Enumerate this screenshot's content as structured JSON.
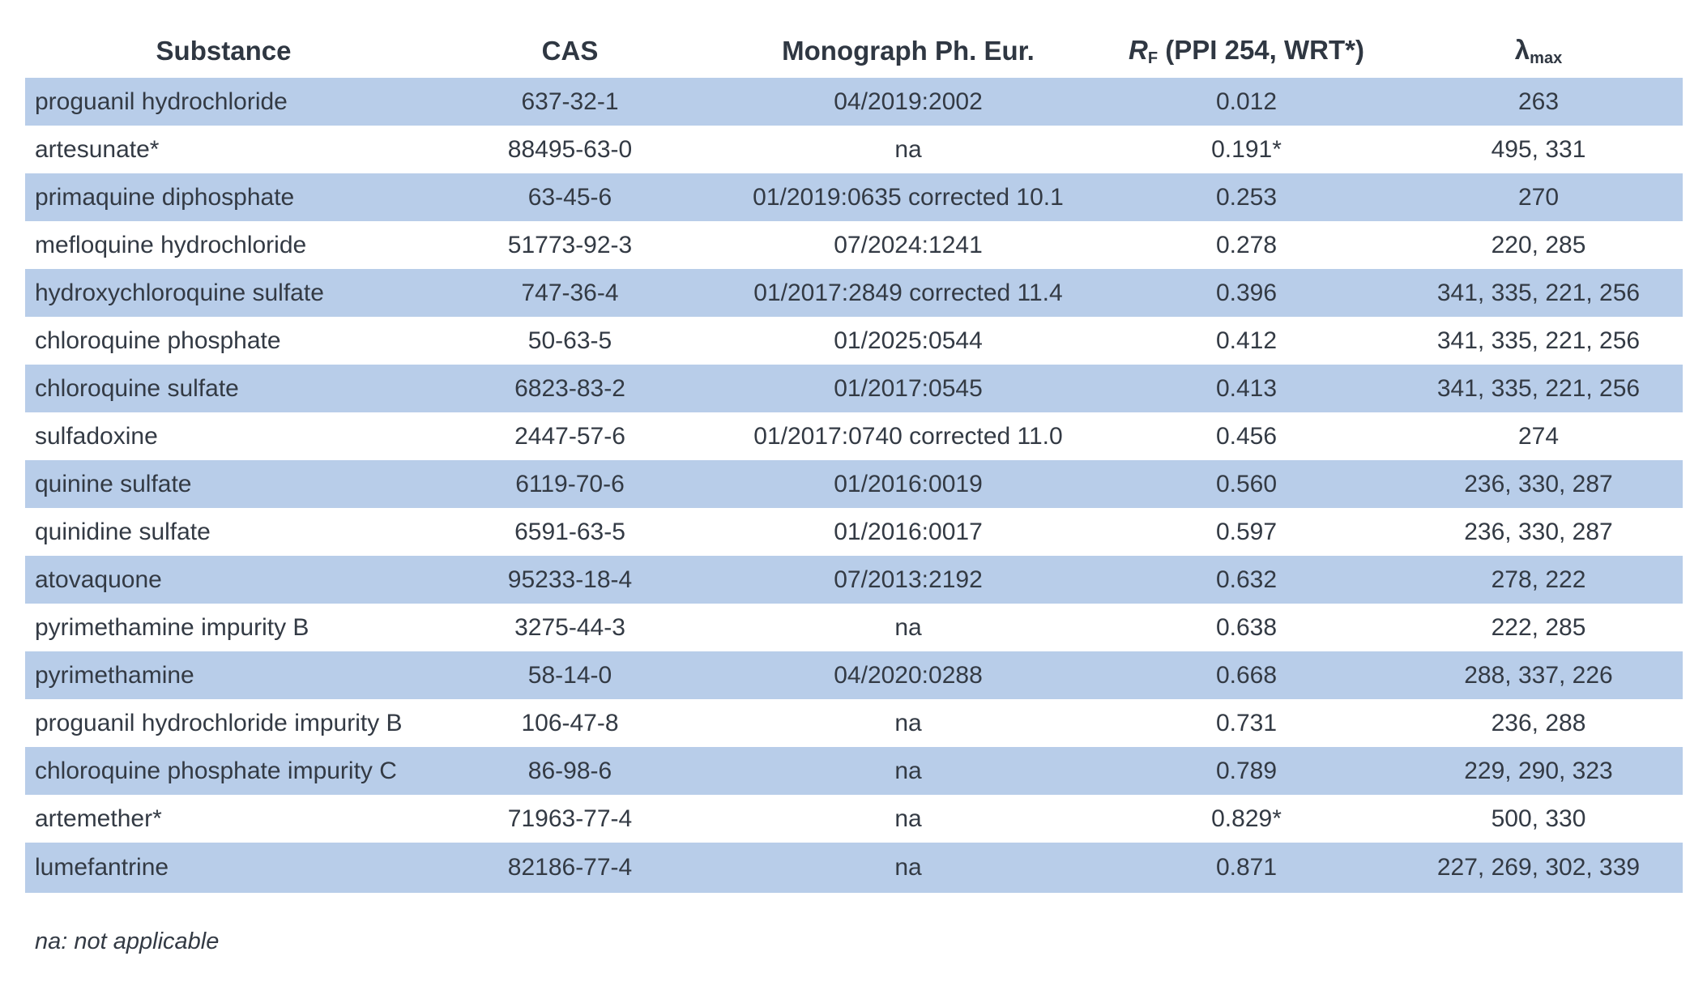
{
  "header": {
    "substance": "Substance",
    "cas": "CAS",
    "monograph": "Monograph Ph. Eur.",
    "rf_symbol": "R",
    "rf_sub": "F",
    "rf_rest": " (PPI 254, WRT*)",
    "lambda_symbol": "λ",
    "lambda_sub": "max"
  },
  "rows": [
    {
      "substance": "proguanil hydrochloride",
      "cas": "637-32-1",
      "monograph": "04/2019:2002",
      "rf": "0.012",
      "lambda": "263"
    },
    {
      "substance": "artesunate*",
      "cas": "88495-63-0",
      "monograph": "na",
      "rf": "0.191*",
      "lambda": "495, 331"
    },
    {
      "substance": "primaquine diphosphate",
      "cas": "63-45-6",
      "monograph": "01/2019:0635 corrected 10.1",
      "rf": "0.253",
      "lambda": "270"
    },
    {
      "substance": "mefloquine hydrochloride",
      "cas": "51773-92-3",
      "monograph": "07/2024:1241",
      "rf": "0.278",
      "lambda": "220, 285"
    },
    {
      "substance": "hydroxychloroquine sulfate",
      "cas": "747-36-4",
      "monograph": "01/2017:2849 corrected 11.4",
      "rf": "0.396",
      "lambda": "341, 335, 221, 256"
    },
    {
      "substance": "chloroquine phosphate",
      "cas": "50-63-5",
      "monograph": "01/2025:0544",
      "rf": "0.412",
      "lambda": "341, 335, 221, 256"
    },
    {
      "substance": "chloroquine sulfate",
      "cas": "6823-83-2",
      "monograph": "01/2017:0545",
      "rf": "0.413",
      "lambda": "341, 335, 221, 256"
    },
    {
      "substance": "sulfadoxine",
      "cas": "2447-57-6",
      "monograph": "01/2017:0740 corrected 11.0",
      "rf": "0.456",
      "lambda": "274"
    },
    {
      "substance": "quinine sulfate",
      "cas": "6119-70-6",
      "monograph": "01/2016:0019",
      "rf": "0.560",
      "lambda": "236, 330, 287"
    },
    {
      "substance": "quinidine sulfate",
      "cas": "6591-63-5",
      "monograph": "01/2016:0017",
      "rf": "0.597",
      "lambda": "236, 330, 287"
    },
    {
      "substance": "atovaquone",
      "cas": "95233-18-4",
      "monograph": "07/2013:2192",
      "rf": "0.632",
      "lambda": "278, 222"
    },
    {
      "substance": "pyrimethamine impurity B",
      "cas": "3275-44-3",
      "monograph": "na",
      "rf": "0.638",
      "lambda": "222, 285"
    },
    {
      "substance": "pyrimethamine",
      "cas": "58-14-0",
      "monograph": "04/2020:0288",
      "rf": "0.668",
      "lambda": "288, 337, 226"
    },
    {
      "substance": "proguanil hydrochloride impurity B",
      "cas": "106-47-8",
      "monograph": "na",
      "rf": "0.731",
      "lambda": "236, 288"
    },
    {
      "substance": "chloroquine phosphate impurity C",
      "cas": "86-98-6",
      "monograph": "na",
      "rf": "0.789",
      "lambda": "229, 290, 323"
    },
    {
      "substance": "artemether*",
      "cas": "71963-77-4",
      "monograph": "na",
      "rf": "0.829*",
      "lambda": "500, 330"
    },
    {
      "substance": "lumefantrine",
      "cas": "82186-77-4",
      "monograph": "na",
      "rf": "0.871",
      "lambda": "227, 269, 302, 339"
    }
  ],
  "footnote": "na: not applicable",
  "colors": {
    "row_shade": "#b8cde9",
    "text": "#333a44"
  }
}
